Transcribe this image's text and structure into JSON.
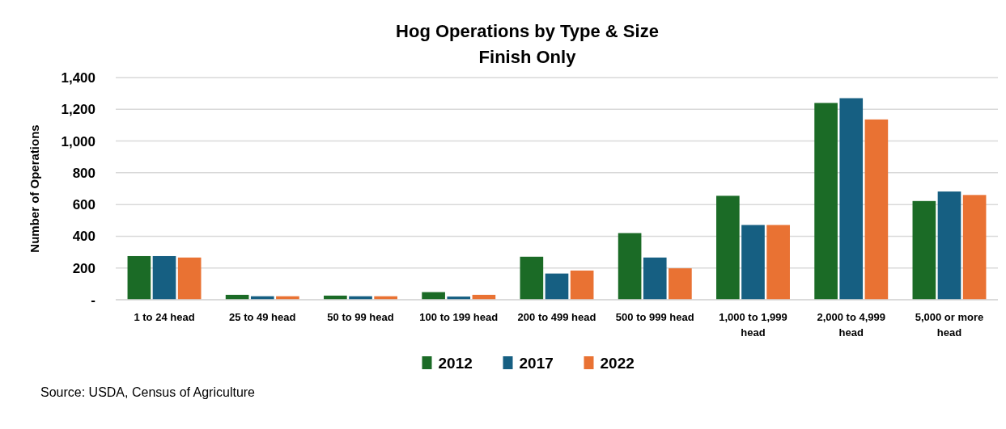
{
  "chart_data": {
    "type": "bar",
    "title": "Hog Operations by Type & Size",
    "subtitle": "Finish Only",
    "ylabel": "Number of Operations",
    "categories": [
      "1 to 24 head",
      "25 to 49 head",
      "50 to 99 head",
      "100 to 199 head",
      "200 to 499 head",
      "500 to 999 head",
      "1,000 to 1,999 head",
      "2,000 to 4,999 head",
      "5,000 or more head"
    ],
    "series": [
      {
        "name": "2012",
        "color": "#1b6b26",
        "values": [
          275,
          31,
          26,
          48,
          271,
          420,
          655,
          1240,
          622
        ]
      },
      {
        "name": "2017",
        "color": "#165f82",
        "values": [
          275,
          22,
          22,
          20,
          165,
          266,
          471,
          1270,
          682
        ]
      },
      {
        "name": "2022",
        "color": "#e97233",
        "values": [
          266,
          22,
          22,
          31,
          184,
          198,
          471,
          1136,
          660
        ]
      }
    ],
    "ylim": [
      0,
      1400
    ],
    "yticks": [
      {
        "value": 0,
        "label": "-"
      },
      {
        "value": 200,
        "label": "200"
      },
      {
        "value": 400,
        "label": "400"
      },
      {
        "value": 600,
        "label": "600"
      },
      {
        "value": 800,
        "label": "800"
      },
      {
        "value": 1000,
        "label": "1,000"
      },
      {
        "value": 1200,
        "label": "1,200"
      },
      {
        "value": 1400,
        "label": "1,400"
      }
    ],
    "grid": "y",
    "legend": "bottom",
    "annotations": [
      "Source: USDA, Census of Agriculture"
    ]
  }
}
